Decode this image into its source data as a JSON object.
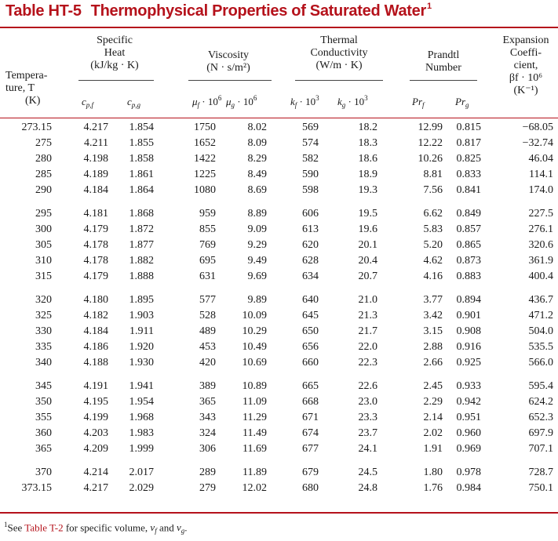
{
  "title": {
    "number": "Table HT-5",
    "text": "Thermophysical Properties of Saturated Water",
    "footnote_marker": "1"
  },
  "headers": {
    "temperature": [
      "Tempera-",
      "ture, T",
      "(K)"
    ],
    "specific_heat": [
      "Specific",
      "Heat",
      "(kJ/kg · K)"
    ],
    "viscosity": [
      "Viscosity",
      "(N · s/m²)"
    ],
    "thermal_conductivity": [
      "Thermal",
      "Conductivity",
      "(W/m · K)"
    ],
    "prandtl": [
      "Prandtl",
      "Number"
    ],
    "expansion": [
      "Expansion",
      "Coeffi-",
      "cient,",
      "βf · 10⁶",
      "(K⁻¹)"
    ]
  },
  "subheaders": {
    "cpf": [
      "c",
      "p,f"
    ],
    "cpg": [
      "c",
      "p,g"
    ],
    "muf": [
      "μ",
      "f",
      " · 10",
      "6"
    ],
    "mug": [
      "μ",
      "g",
      " · 10",
      "6"
    ],
    "kf": [
      "k",
      "f",
      " · 10",
      "3"
    ],
    "kg": [
      "k",
      "g",
      " · 10",
      "3"
    ],
    "prf": [
      "Pr",
      "f"
    ],
    "prg": [
      "Pr",
      "g"
    ]
  },
  "rows": [
    [
      "273.15",
      "4.217",
      "1.854",
      "1750",
      "8.02",
      "569",
      "18.2",
      "12.99",
      "0.815",
      "−68.05"
    ],
    [
      "275",
      "4.211",
      "1.855",
      "1652",
      "8.09",
      "574",
      "18.3",
      "12.22",
      "0.817",
      "−32.74"
    ],
    [
      "280",
      "4.198",
      "1.858",
      "1422",
      "8.29",
      "582",
      "18.6",
      "10.26",
      "0.825",
      "46.04"
    ],
    [
      "285",
      "4.189",
      "1.861",
      "1225",
      "8.49",
      "590",
      "18.9",
      "8.81",
      "0.833",
      "114.1"
    ],
    [
      "290",
      "4.184",
      "1.864",
      "1080",
      "8.69",
      "598",
      "19.3",
      "7.56",
      "0.841",
      "174.0"
    ],
    [
      "295",
      "4.181",
      "1.868",
      "959",
      "8.89",
      "606",
      "19.5",
      "6.62",
      "0.849",
      "227.5"
    ],
    [
      "300",
      "4.179",
      "1.872",
      "855",
      "9.09",
      "613",
      "19.6",
      "5.83",
      "0.857",
      "276.1"
    ],
    [
      "305",
      "4.178",
      "1.877",
      "769",
      "9.29",
      "620",
      "20.1",
      "5.20",
      "0.865",
      "320.6"
    ],
    [
      "310",
      "4.178",
      "1.882",
      "695",
      "9.49",
      "628",
      "20.4",
      "4.62",
      "0.873",
      "361.9"
    ],
    [
      "315",
      "4.179",
      "1.888",
      "631",
      "9.69",
      "634",
      "20.7",
      "4.16",
      "0.883",
      "400.4"
    ],
    [
      "320",
      "4.180",
      "1.895",
      "577",
      "9.89",
      "640",
      "21.0",
      "3.77",
      "0.894",
      "436.7"
    ],
    [
      "325",
      "4.182",
      "1.903",
      "528",
      "10.09",
      "645",
      "21.3",
      "3.42",
      "0.901",
      "471.2"
    ],
    [
      "330",
      "4.184",
      "1.911",
      "489",
      "10.29",
      "650",
      "21.7",
      "3.15",
      "0.908",
      "504.0"
    ],
    [
      "335",
      "4.186",
      "1.920",
      "453",
      "10.49",
      "656",
      "22.0",
      "2.88",
      "0.916",
      "535.5"
    ],
    [
      "340",
      "4.188",
      "1.930",
      "420",
      "10.69",
      "660",
      "22.3",
      "2.66",
      "0.925",
      "566.0"
    ],
    [
      "345",
      "4.191",
      "1.941",
      "389",
      "10.89",
      "665",
      "22.6",
      "2.45",
      "0.933",
      "595.4"
    ],
    [
      "350",
      "4.195",
      "1.954",
      "365",
      "11.09",
      "668",
      "23.0",
      "2.29",
      "0.942",
      "624.2"
    ],
    [
      "355",
      "4.199",
      "1.968",
      "343",
      "11.29",
      "671",
      "23.3",
      "2.14",
      "0.951",
      "652.3"
    ],
    [
      "360",
      "4.203",
      "1.983",
      "324",
      "11.49",
      "674",
      "23.7",
      "2.02",
      "0.960",
      "697.9"
    ],
    [
      "365",
      "4.209",
      "1.999",
      "306",
      "11.69",
      "677",
      "24.1",
      "1.91",
      "0.969",
      "707.1"
    ],
    [
      "370",
      "4.214",
      "2.017",
      "289",
      "11.89",
      "679",
      "24.5",
      "1.80",
      "0.978",
      "728.7"
    ],
    [
      "373.15",
      "4.217",
      "2.029",
      "279",
      "12.02",
      "680",
      "24.8",
      "1.76",
      "0.984",
      "750.1"
    ]
  ],
  "footnote": {
    "marker": "1",
    "prefix": "See",
    "link": "Table T-2",
    "middle": "for specific volume,",
    "vf": [
      "v",
      "f"
    ],
    "and": "and",
    "vg": [
      "v",
      "g"
    ],
    "end": "."
  },
  "colors": {
    "accent": "#b5121b",
    "text": "#1a1a1a"
  }
}
